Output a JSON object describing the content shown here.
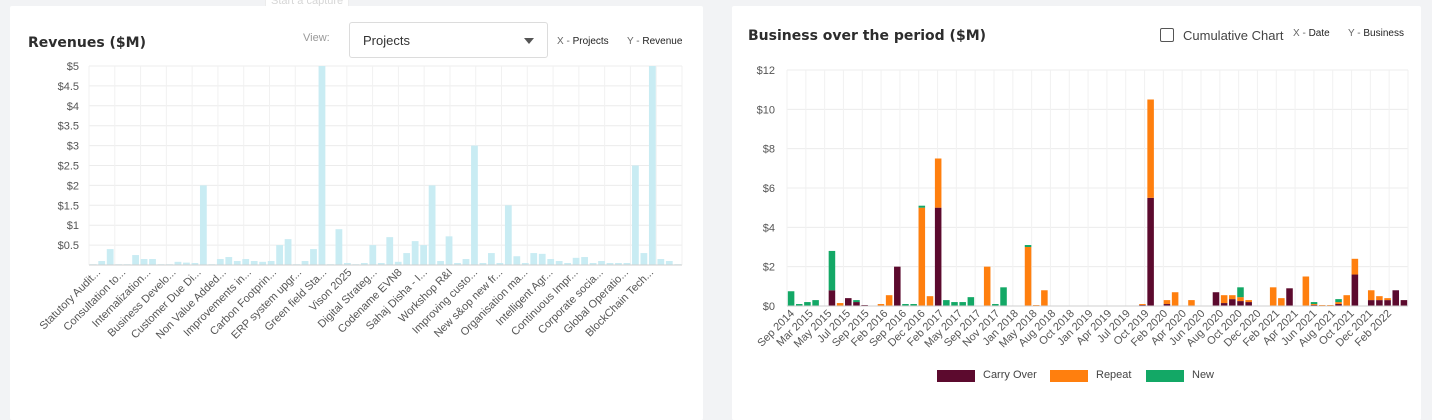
{
  "capture_hint": "Start a capture",
  "left_panel": {
    "title": "Revenues ($M)",
    "view_label": "View:",
    "dropdown_value": "Projects",
    "x_tag_key": "X - ",
    "x_tag_value": "Projects",
    "y_tag_key": "Y - ",
    "y_tag_value": "Revenue"
  },
  "right_panel": {
    "title": "Business over the period ($M)",
    "cumulative_label": "Cumulative Chart",
    "x_tag_key": "X - ",
    "x_tag_value": "Date",
    "y_tag_key": "Y - ",
    "y_tag_value": "Business"
  },
  "chart_data": [
    {
      "type": "bar",
      "title": "Revenues ($M)",
      "xlabel": "Projects",
      "ylabel": "Revenue",
      "ylim": [
        0,
        5
      ],
      "yticks": [
        "$5",
        "$4.5",
        "$4",
        "$3.5",
        "$3",
        "$2.5",
        "$2",
        "$1.5",
        "$1",
        "$0.5"
      ],
      "ytick_values": [
        5,
        4.5,
        4,
        3.5,
        3,
        2.5,
        2,
        1.5,
        1,
        0.5
      ],
      "grid": true,
      "color": "#c9ecf3",
      "tick_labels": [
        "Statutory Audit...",
        "Consultation to...",
        "Internalization...",
        "Business Develo...",
        "Customer Due Di...",
        "Non Value Added...",
        "Improvements in...",
        "Carbon Footprin...",
        "ERP system upgr...",
        "Green field Sta...",
        "Vison 2025",
        "Digital Strateg...",
        "Codename EVN8",
        "Sahaj Disha - I...",
        "Workshop R&I",
        "Improving custo...",
        "New s&op new fr...",
        "Organisation ma...",
        "Intelligent Agr...",
        "Continuous Impr...",
        "Corporate socia...",
        "Global Operatio...",
        "BlockChain Tech..."
      ],
      "values": [
        0.02,
        0.1,
        0.4,
        0.02,
        0.02,
        0.25,
        0.15,
        0.15,
        0.02,
        0.02,
        0.08,
        0.06,
        0.05,
        2.0,
        0.02,
        0.15,
        0.2,
        0.1,
        0.15,
        0.1,
        0.08,
        0.1,
        0.5,
        0.65,
        0.02,
        0.1,
        0.4,
        5.0,
        0.02,
        0.9,
        0.05,
        0.02,
        0.05,
        0.5,
        0.05,
        0.7,
        0.08,
        0.3,
        0.6,
        0.5,
        2.0,
        0.1,
        0.72,
        0.05,
        0.15,
        3.0,
        0.05,
        0.3,
        0.05,
        1.5,
        0.22,
        0.05,
        0.3,
        0.28,
        0.15,
        0.1,
        0.05,
        0.18,
        0.2,
        0.05,
        0.1,
        0.05,
        0.05,
        0.05,
        2.5,
        0.3,
        5.0,
        0.15,
        0.1,
        0.02
      ]
    },
    {
      "type": "bar",
      "stacked": true,
      "title": "Business over the period ($M)",
      "xlabel": "Date",
      "ylabel": "Business",
      "ylim": [
        0,
        12
      ],
      "yticks": [
        "$12",
        "$10",
        "$8",
        "$6",
        "$4",
        "$2",
        "$0"
      ],
      "ytick_values": [
        12,
        10,
        8,
        6,
        4,
        2,
        0
      ],
      "grid": true,
      "legend_position": "bottom",
      "tick_labels": [
        "Sep 2014",
        "Mar 2015",
        "May 2015",
        "Jul 2015",
        "Sep 2015",
        "Feb 2016",
        "Sep 2016",
        "Dec 2016",
        "Feb 2017",
        "May 2017",
        "Sep 2017",
        "Nov 2017",
        "Jan 2018",
        "May 2018",
        "Aug 2018",
        "Oct 2018",
        "Jan 2019",
        "Apr 2019",
        "Jul 2019",
        "Oct 2019",
        "Feb 2020",
        "Apr 2020",
        "Jun 2020",
        "Aug 2020",
        "Oct 2020",
        "Dec 2020",
        "Feb 2021",
        "Apr 2021",
        "Jun 2021",
        "Aug 2021",
        "Oct 2021",
        "Dec 2021",
        "Feb 2022"
      ],
      "series": [
        {
          "name": "Carry Over",
          "color": "#5c0a2e",
          "values": [
            0,
            0,
            0,
            0,
            0,
            0.8,
            0,
            0.4,
            0.2,
            0.05,
            0,
            0,
            0,
            2.0,
            0,
            0,
            0,
            0,
            5.0,
            0,
            0,
            0,
            0,
            0,
            0,
            0,
            0,
            0,
            0,
            0,
            0,
            0,
            0,
            0,
            0,
            0,
            0,
            0,
            0,
            0,
            0,
            0,
            0,
            0.05,
            5.5,
            0,
            0.1,
            0,
            0,
            0,
            0,
            0,
            0.7,
            0.15,
            0.35,
            0.25,
            0.2,
            0,
            0,
            0,
            0,
            0.9,
            0,
            0,
            0.05,
            0,
            0,
            0.1,
            0,
            1.6,
            0,
            0.3,
            0.3,
            0.3,
            0.8,
            0.3
          ]
        },
        {
          "name": "Repeat",
          "color": "#ff7f0e",
          "values": [
            0,
            0,
            0,
            0,
            0,
            0,
            0.15,
            0,
            0,
            0,
            0,
            0.1,
            0.55,
            0,
            0,
            0,
            5.0,
            0.5,
            2.5,
            0,
            0,
            0,
            0,
            0,
            2.0,
            0,
            0,
            0,
            0,
            3.0,
            0.05,
            0.8,
            0,
            0,
            0,
            0,
            0,
            0,
            0,
            0,
            0,
            0,
            0,
            0.05,
            5.0,
            0,
            0.2,
            0.7,
            0,
            0.3,
            0,
            0,
            0,
            0.4,
            0.2,
            0.2,
            0.1,
            0,
            0,
            0.95,
            0.4,
            0,
            0,
            1.5,
            0.05,
            0.05,
            0.05,
            0.1,
            0.55,
            0.8,
            0,
            0.5,
            0.2,
            0.1,
            0,
            0
          ]
        },
        {
          "name": "New",
          "color": "#13a866",
          "values": [
            0.75,
            0.1,
            0.2,
            0.3,
            0,
            2.0,
            0,
            0,
            0.1,
            0,
            0,
            0,
            0,
            0,
            0.1,
            0.1,
            0.1,
            0,
            0,
            0.3,
            0.2,
            0.2,
            0.45,
            0,
            0,
            0.1,
            0.95,
            0,
            0,
            0.1,
            0,
            0,
            0,
            0,
            0,
            0,
            0,
            0,
            0,
            0,
            0,
            0,
            0,
            0,
            0,
            0,
            0,
            0,
            0,
            0,
            0,
            0,
            0,
            0,
            0,
            0.5,
            0,
            0,
            0,
            0,
            0,
            0,
            0,
            0,
            0.1,
            0,
            0,
            0.15,
            0,
            0,
            0,
            0,
            0,
            0,
            0,
            0
          ]
        }
      ]
    }
  ]
}
